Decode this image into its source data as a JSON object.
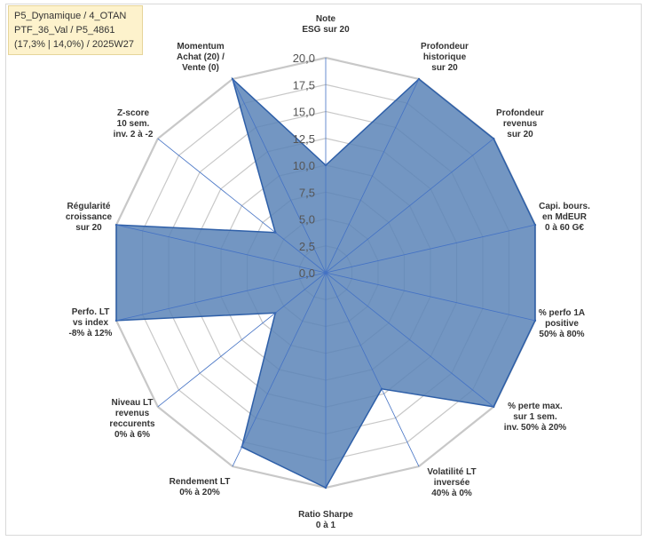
{
  "info": {
    "line1": "P5_Dynamique / 4_OTAN",
    "line2": "PTF_36_Val / P5_4861",
    "line3": "(17,3% | 14,0%) / 2025W27"
  },
  "chart_data": {
    "type": "radar",
    "rmin": 0,
    "rmax": 20,
    "ticks": [
      "0,0",
      "2,5",
      "5,0",
      "7,5",
      "10,0",
      "12,5",
      "15,0",
      "17,5",
      "20,0"
    ],
    "tick_values": [
      0,
      2.5,
      5,
      7.5,
      10,
      12.5,
      15,
      17.5,
      20
    ],
    "axes": [
      "Note\nESG sur 20",
      "Profondeur\nhistorique\nsur 20",
      "Profondeur\nrevenus\nsur 20",
      "Capi. bours.\nen MdEUR\n0 à 60 G€",
      "% perfo 1A\npositive\n50% à 80%",
      "% perte max.\nsur 1 sem.\ninv. 50% à 20%",
      "Volatilité LT\ninversée\n40% à 0%",
      "Ratio Sharpe\n0 à 1",
      "Rendement LT\n0% à 20%",
      "Niveau LT\nrevenus\nreccurents\n0% à 6%",
      "Perfo. LT\nvs index\n-8% à 12%",
      "Régularité\ncroissance\nsur 20",
      "Z-score\n10 sem.\ninv. 2 à -2",
      "Momentum\nAchat (20) /\nVente (0)"
    ],
    "series": [
      {
        "values": [
          10,
          20,
          20,
          20,
          20,
          20,
          12,
          20,
          18,
          6,
          20,
          20,
          6,
          20
        ]
      }
    ],
    "colors": {
      "fill": "#5b84b7",
      "stroke": "#2e5fa8",
      "grid": "#c8c8c8",
      "spoke": "#4472c4"
    }
  }
}
